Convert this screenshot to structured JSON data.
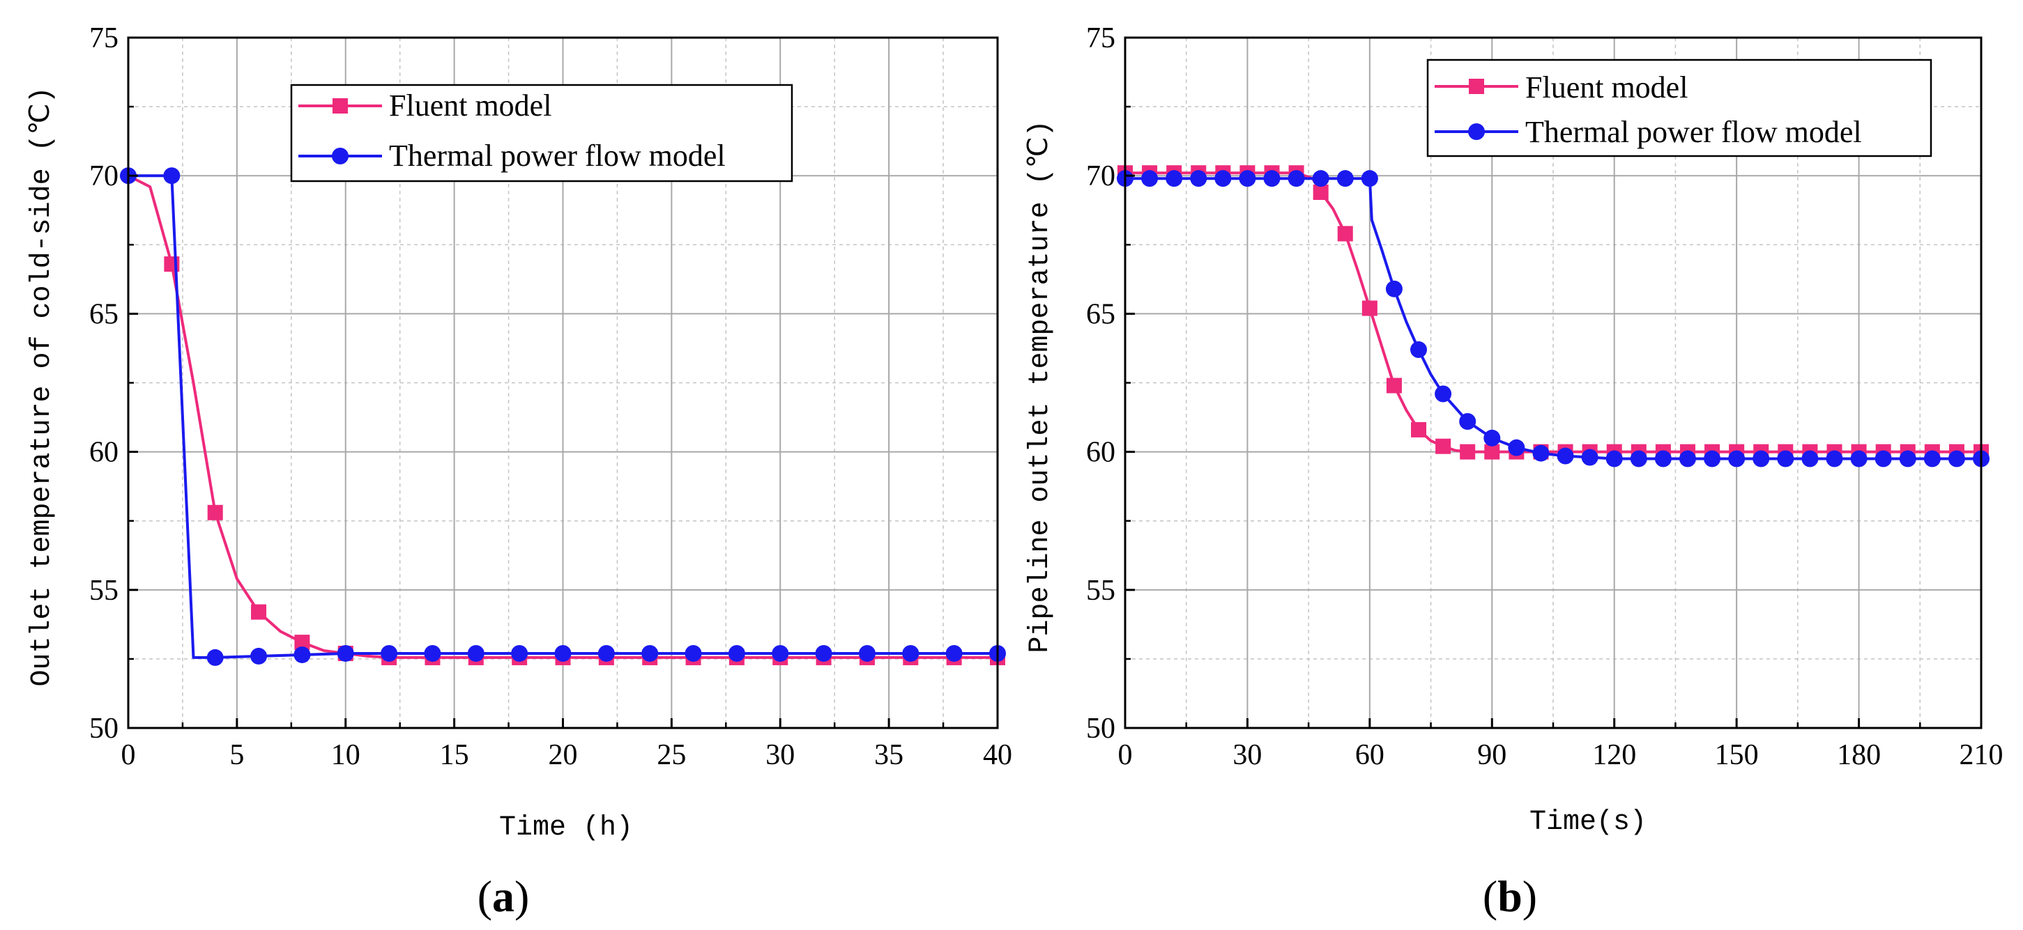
{
  "chart_data": [
    {
      "type": "line",
      "panel_label": "(a)",
      "panel_open": "(",
      "panel_letter": "a",
      "panel_close": ")",
      "xlabel": "Time (h)",
      "ylabel": "Outlet temperature of cold-side (℃)",
      "xlim": [
        0,
        40
      ],
      "ylim": [
        50,
        75
      ],
      "xticks": [
        0,
        5,
        10,
        15,
        20,
        25,
        30,
        35,
        40
      ],
      "yticks": [
        50,
        55,
        60,
        65,
        70,
        75
      ],
      "x_minor_step": 2.5,
      "y_minor_step": 2.5,
      "grid": true,
      "legend_position": "top-center",
      "series": [
        {
          "name": "Fluent model",
          "color": "#ee2a7b",
          "marker": "square",
          "line_x": [
            0,
            1,
            2,
            3,
            4,
            5,
            6,
            7,
            8,
            9,
            10,
            11,
            12,
            14,
            16,
            18,
            20,
            22,
            24,
            26,
            28,
            30,
            32,
            34,
            36,
            38,
            40
          ],
          "line_y": [
            70.0,
            69.6,
            66.8,
            62.5,
            57.8,
            55.4,
            54.2,
            53.5,
            53.1,
            52.8,
            52.7,
            52.6,
            52.55,
            52.55,
            52.55,
            52.55,
            52.55,
            52.55,
            52.55,
            52.55,
            52.55,
            52.55,
            52.55,
            52.55,
            52.55,
            52.55,
            52.55
          ],
          "marker_x": [
            2,
            4,
            6,
            8,
            10,
            12,
            14,
            16,
            18,
            20,
            22,
            24,
            26,
            28,
            30,
            32,
            34,
            36,
            38,
            40
          ],
          "marker_y": [
            66.8,
            57.8,
            54.2,
            53.1,
            52.7,
            52.55,
            52.55,
            52.55,
            52.55,
            52.55,
            52.55,
            52.55,
            52.55,
            52.55,
            52.55,
            52.55,
            52.55,
            52.55,
            52.55,
            52.55
          ]
        },
        {
          "name": "Thermal power flow model",
          "color": "#1a1aee",
          "marker": "circle",
          "line_x": [
            0,
            2,
            3,
            4,
            6,
            8,
            10,
            12,
            14,
            16,
            18,
            20,
            22,
            24,
            26,
            28,
            30,
            32,
            34,
            36,
            38,
            40
          ],
          "line_y": [
            70.0,
            70.0,
            52.55,
            52.55,
            52.6,
            52.65,
            52.7,
            52.7,
            52.7,
            52.7,
            52.7,
            52.7,
            52.7,
            52.7,
            52.7,
            52.7,
            52.7,
            52.7,
            52.7,
            52.7,
            52.7,
            52.7
          ],
          "marker_x": [
            0,
            2,
            4,
            6,
            8,
            10,
            12,
            14,
            16,
            18,
            20,
            22,
            24,
            26,
            28,
            30,
            32,
            34,
            36,
            38,
            40
          ],
          "marker_y": [
            70.0,
            70.0,
            52.55,
            52.6,
            52.65,
            52.7,
            52.7,
            52.7,
            52.7,
            52.7,
            52.7,
            52.7,
            52.7,
            52.7,
            52.7,
            52.7,
            52.7,
            52.7,
            52.7,
            52.7,
            52.7
          ]
        }
      ]
    },
    {
      "type": "line",
      "panel_label": "(b)",
      "panel_open": "(",
      "panel_letter": "b",
      "panel_close": ")",
      "xlabel": "Time(s)",
      "ylabel": "Pipeline outlet temperature (℃)",
      "xlim": [
        0,
        210
      ],
      "ylim": [
        50,
        75
      ],
      "xticks": [
        0,
        30,
        60,
        90,
        120,
        150,
        180,
        210
      ],
      "yticks": [
        50,
        55,
        60,
        65,
        70,
        75
      ],
      "x_minor_step": 15,
      "y_minor_step": 2.5,
      "grid": true,
      "legend_position": "top-right",
      "series": [
        {
          "name": "Fluent model",
          "color": "#ee2a7b",
          "marker": "square",
          "line_x": [
            0,
            42,
            46,
            48,
            51,
            54,
            57,
            60,
            63,
            66,
            69,
            72,
            75,
            78,
            81,
            84,
            90,
            96,
            102,
            210
          ],
          "line_y": [
            70.1,
            70.1,
            69.9,
            69.4,
            68.8,
            67.9,
            66.6,
            65.2,
            63.8,
            62.4,
            61.5,
            60.8,
            60.4,
            60.2,
            60.05,
            60.0,
            60.0,
            60.0,
            60.0,
            60.0
          ],
          "marker_x": [
            0,
            6,
            12,
            18,
            24,
            30,
            36,
            42,
            48,
            54,
            60,
            66,
            72,
            78,
            84,
            90,
            96,
            102,
            108,
            114,
            120,
            126,
            132,
            138,
            144,
            150,
            156,
            162,
            168,
            174,
            180,
            186,
            192,
            198,
            204,
            210
          ],
          "marker_y": [
            70.1,
            70.1,
            70.1,
            70.1,
            70.1,
            70.1,
            70.1,
            70.1,
            69.4,
            67.9,
            65.2,
            62.4,
            60.8,
            60.2,
            60.0,
            60.0,
            60.0,
            60.0,
            60.0,
            60.0,
            60.0,
            60.0,
            60.0,
            60.0,
            60.0,
            60.0,
            60.0,
            60.0,
            60.0,
            60.0,
            60.0,
            60.0,
            60.0,
            60.0,
            60.0,
            60.0
          ]
        },
        {
          "name": "Thermal power flow model",
          "color": "#1a1aee",
          "marker": "circle",
          "line_x": [
            0,
            60,
            60.5,
            63,
            66,
            69,
            72,
            75,
            78,
            81,
            84,
            87,
            90,
            96,
            102,
            108,
            114,
            120,
            210
          ],
          "line_y": [
            69.9,
            69.9,
            68.4,
            67.3,
            65.9,
            64.7,
            63.7,
            62.8,
            62.1,
            61.6,
            61.1,
            60.8,
            60.5,
            60.15,
            59.95,
            59.85,
            59.8,
            59.75,
            59.75
          ],
          "marker_x": [
            0,
            6,
            12,
            18,
            24,
            30,
            36,
            42,
            48,
            54,
            60,
            66,
            72,
            78,
            84,
            90,
            96,
            102,
            108,
            114,
            120,
            126,
            132,
            138,
            144,
            150,
            156,
            162,
            168,
            174,
            180,
            186,
            192,
            198,
            204,
            210
          ],
          "marker_y": [
            69.9,
            69.9,
            69.9,
            69.9,
            69.9,
            69.9,
            69.9,
            69.9,
            69.9,
            69.9,
            69.9,
            65.9,
            63.7,
            62.1,
            61.1,
            60.5,
            60.15,
            59.95,
            59.85,
            59.8,
            59.75,
            59.75,
            59.75,
            59.75,
            59.75,
            59.75,
            59.75,
            59.75,
            59.75,
            59.75,
            59.75,
            59.75,
            59.75,
            59.75,
            59.75,
            59.75
          ]
        }
      ]
    }
  ]
}
